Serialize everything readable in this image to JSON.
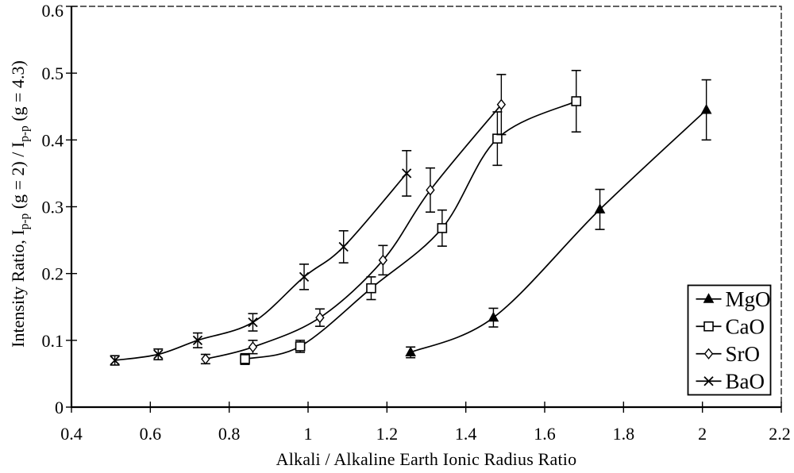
{
  "chart_data": {
    "type": "line",
    "subtype": "scatter-line-with-error-bars",
    "title": "",
    "xlabel": "Alkali / Alkaline Earth Ionic Radius Ratio",
    "ylabel_parts": [
      "Intensity Ratio, I",
      "p-p",
      " (g = 2) / I",
      "p-p",
      " (g = 4.3)"
    ],
    "xlim": [
      0.4,
      2.2
    ],
    "ylim": [
      0,
      0.6
    ],
    "x_ticks": [
      0.4,
      0.6,
      0.8,
      1.0,
      1.2,
      1.4,
      1.6,
      1.8,
      2.0,
      2.2
    ],
    "x_tick_labels": [
      "0.4",
      "0.6",
      "0.8",
      "1",
      "1.2",
      "1.4",
      "1.6",
      "1.8",
      "2",
      "2.2"
    ],
    "y_ticks": [
      0,
      0.1,
      0.2,
      0.3,
      0.4,
      0.5,
      0.6
    ],
    "y_tick_labels": [
      "0",
      "0.1",
      "0.2",
      "0.3",
      "0.4",
      "0.5",
      "0.6"
    ],
    "grid": false,
    "legend_position": "inside-right-middle",
    "ink_color": "#000000",
    "background_color": "#ffffff",
    "series": [
      {
        "name": "MgO",
        "marker": "filled-triangle",
        "points": [
          {
            "x": 1.26,
            "y": 0.082,
            "err": 0.008
          },
          {
            "x": 1.47,
            "y": 0.134,
            "err": 0.014
          },
          {
            "x": 1.74,
            "y": 0.296,
            "err": 0.03
          },
          {
            "x": 2.01,
            "y": 0.445,
            "err": 0.045
          }
        ]
      },
      {
        "name": "CaO",
        "marker": "open-square",
        "points": [
          {
            "x": 0.84,
            "y": 0.072,
            "err": 0.008
          },
          {
            "x": 0.98,
            "y": 0.091,
            "err": 0.009
          },
          {
            "x": 1.16,
            "y": 0.178,
            "err": 0.017
          },
          {
            "x": 1.34,
            "y": 0.268,
            "err": 0.027
          },
          {
            "x": 1.48,
            "y": 0.402,
            "err": 0.04
          },
          {
            "x": 1.68,
            "y": 0.458,
            "err": 0.046
          }
        ]
      },
      {
        "name": "SrO",
        "marker": "open-diamond",
        "points": [
          {
            "x": 0.74,
            "y": 0.072,
            "err": 0.007
          },
          {
            "x": 0.86,
            "y": 0.09,
            "err": 0.01
          },
          {
            "x": 1.03,
            "y": 0.134,
            "err": 0.013
          },
          {
            "x": 1.19,
            "y": 0.22,
            "err": 0.022
          },
          {
            "x": 1.31,
            "y": 0.325,
            "err": 0.033
          },
          {
            "x": 1.49,
            "y": 0.453,
            "err": 0.045
          }
        ]
      },
      {
        "name": "BaO",
        "marker": "x-cross",
        "points": [
          {
            "x": 0.51,
            "y": 0.07,
            "err": 0.007
          },
          {
            "x": 0.62,
            "y": 0.079,
            "err": 0.008
          },
          {
            "x": 0.72,
            "y": 0.1,
            "err": 0.011
          },
          {
            "x": 0.86,
            "y": 0.127,
            "err": 0.013
          },
          {
            "x": 0.99,
            "y": 0.195,
            "err": 0.019
          },
          {
            "x": 1.09,
            "y": 0.24,
            "err": 0.024
          },
          {
            "x": 1.25,
            "y": 0.35,
            "err": 0.034
          }
        ]
      }
    ]
  }
}
